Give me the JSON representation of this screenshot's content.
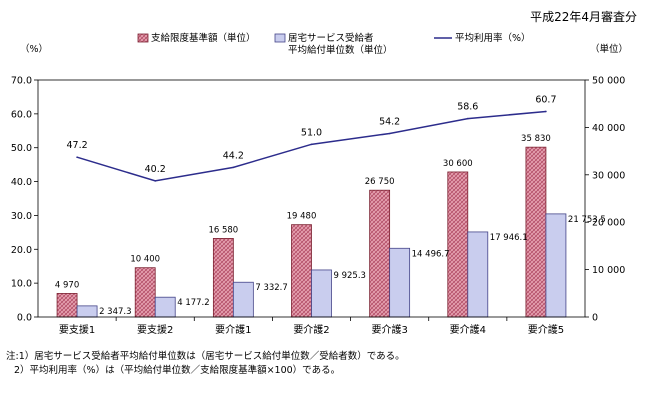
{
  "header": {
    "date_label": "平成22年4月審査分"
  },
  "notes": [
    "注:1）居宅サービス受給者平均給付単位数は（居宅サービス給付単位数／受給者数）である。",
    "2）平均利用率（%）は（平均給付単位数／支給限度基準額×100）である。"
  ],
  "colors": {
    "bar_limit": "#d9889a",
    "bar_avg": "#c9cdee",
    "line": "#2c2c8c"
  },
  "chart_data": {
    "type": "bar+line",
    "categories": [
      "要支援1",
      "要支援2",
      "要介護1",
      "要介護2",
      "要介護3",
      "要介護4",
      "要介護5"
    ],
    "series": [
      {
        "name": "支給限度基準額（単位）",
        "axis": "right",
        "kind": "bar",
        "values": [
          4970,
          10400,
          16580,
          19480,
          26750,
          30600,
          35830
        ],
        "labels": [
          "4 970",
          "10 400",
          "16 580",
          "19 480",
          "26 750",
          "30 600",
          "35 830"
        ]
      },
      {
        "name": "居宅サービス受給者\n平均給付単位数（単位）",
        "axis": "right",
        "kind": "bar",
        "values": [
          2347.3,
          4177.2,
          7332.7,
          9925.3,
          14496.7,
          17946.1,
          21753.5
        ],
        "labels": [
          "2 347.3",
          "4 177.2",
          "7 332.7",
          "9 925.3",
          "14 496.7",
          "17 946.1",
          "21 753.5"
        ]
      },
      {
        "name": "平均利用率（%）",
        "axis": "left",
        "kind": "line",
        "values": [
          47.2,
          40.2,
          44.2,
          51.0,
          54.2,
          58.6,
          60.7
        ],
        "labels": [
          "47.2",
          "40.2",
          "44.2",
          "51.0",
          "54.2",
          "58.6",
          "60.7"
        ]
      }
    ],
    "left_axis": {
      "label": "（%）",
      "min": 0,
      "max": 70,
      "ticks": [
        "0.0",
        "10.0",
        "20.0",
        "30.0",
        "40.0",
        "50.0",
        "60.0",
        "70.0"
      ]
    },
    "right_axis": {
      "label": "（単位）",
      "min": 0,
      "max": 50000,
      "ticks": [
        "0",
        "10 000",
        "20 000",
        "30 000",
        "40 000",
        "50 000"
      ]
    },
    "legend": {
      "limit": "支給限度基準額（単位）",
      "avg_line1": "居宅サービス受給者",
      "avg_line2": "平均給付単位数（単位）",
      "rate": "平均利用率（%）"
    }
  }
}
